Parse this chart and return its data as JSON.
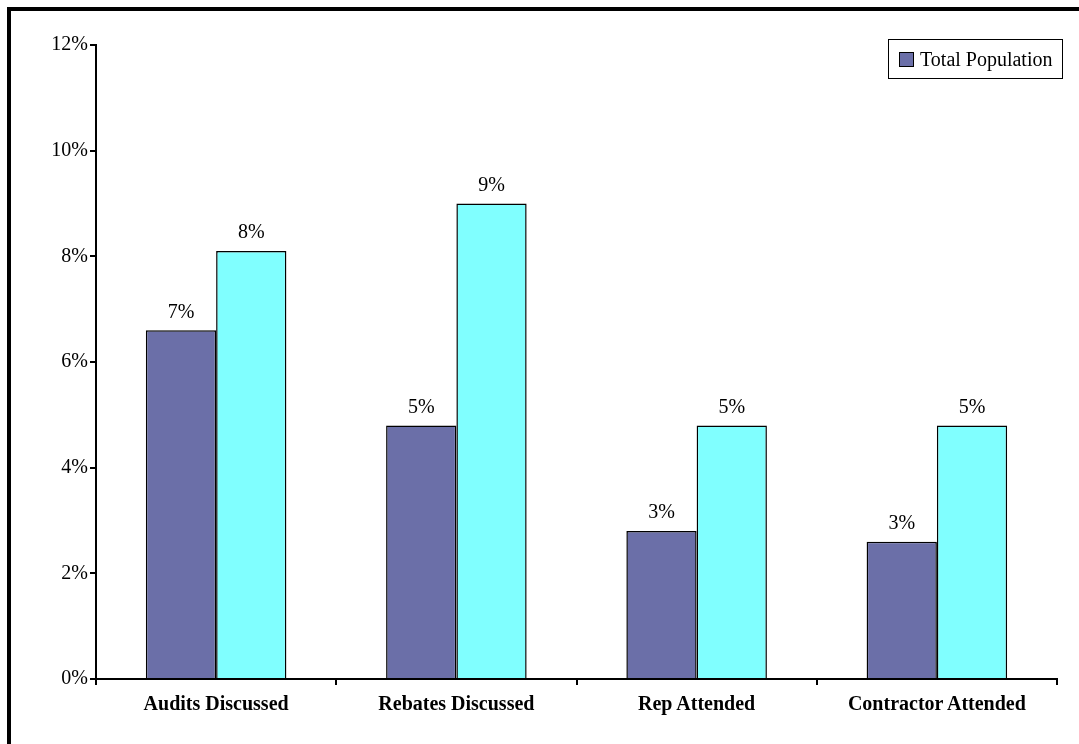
{
  "chart_data": {
    "type": "bar",
    "categories": [
      "Audits Discussed",
      "Rebates Discussed",
      "Rep Attended",
      "Contractor Attended"
    ],
    "series": [
      {
        "name": "Total Population",
        "color": "#6b6fa8",
        "values": [
          6.6,
          4.8,
          2.8,
          2.6
        ],
        "value_labels": [
          "7%",
          "5%",
          "3%",
          "3%"
        ]
      },
      {
        "color": "#80ffff",
        "values": [
          8.1,
          9.0,
          4.8,
          4.8
        ],
        "value_labels": [
          "8%",
          "9%",
          "5%",
          "5%"
        ]
      }
    ],
    "ylim": [
      0,
      12
    ],
    "yticks": [
      {
        "value": 0,
        "label": "0%"
      },
      {
        "value": 2,
        "label": "2%"
      },
      {
        "value": 4,
        "label": "4%"
      },
      {
        "value": 6,
        "label": "6%"
      },
      {
        "value": 8,
        "label": "8%"
      },
      {
        "value": 10,
        "label": "10%"
      },
      {
        "value": 12,
        "label": "12%"
      }
    ],
    "grid": false,
    "legend": "top right"
  }
}
